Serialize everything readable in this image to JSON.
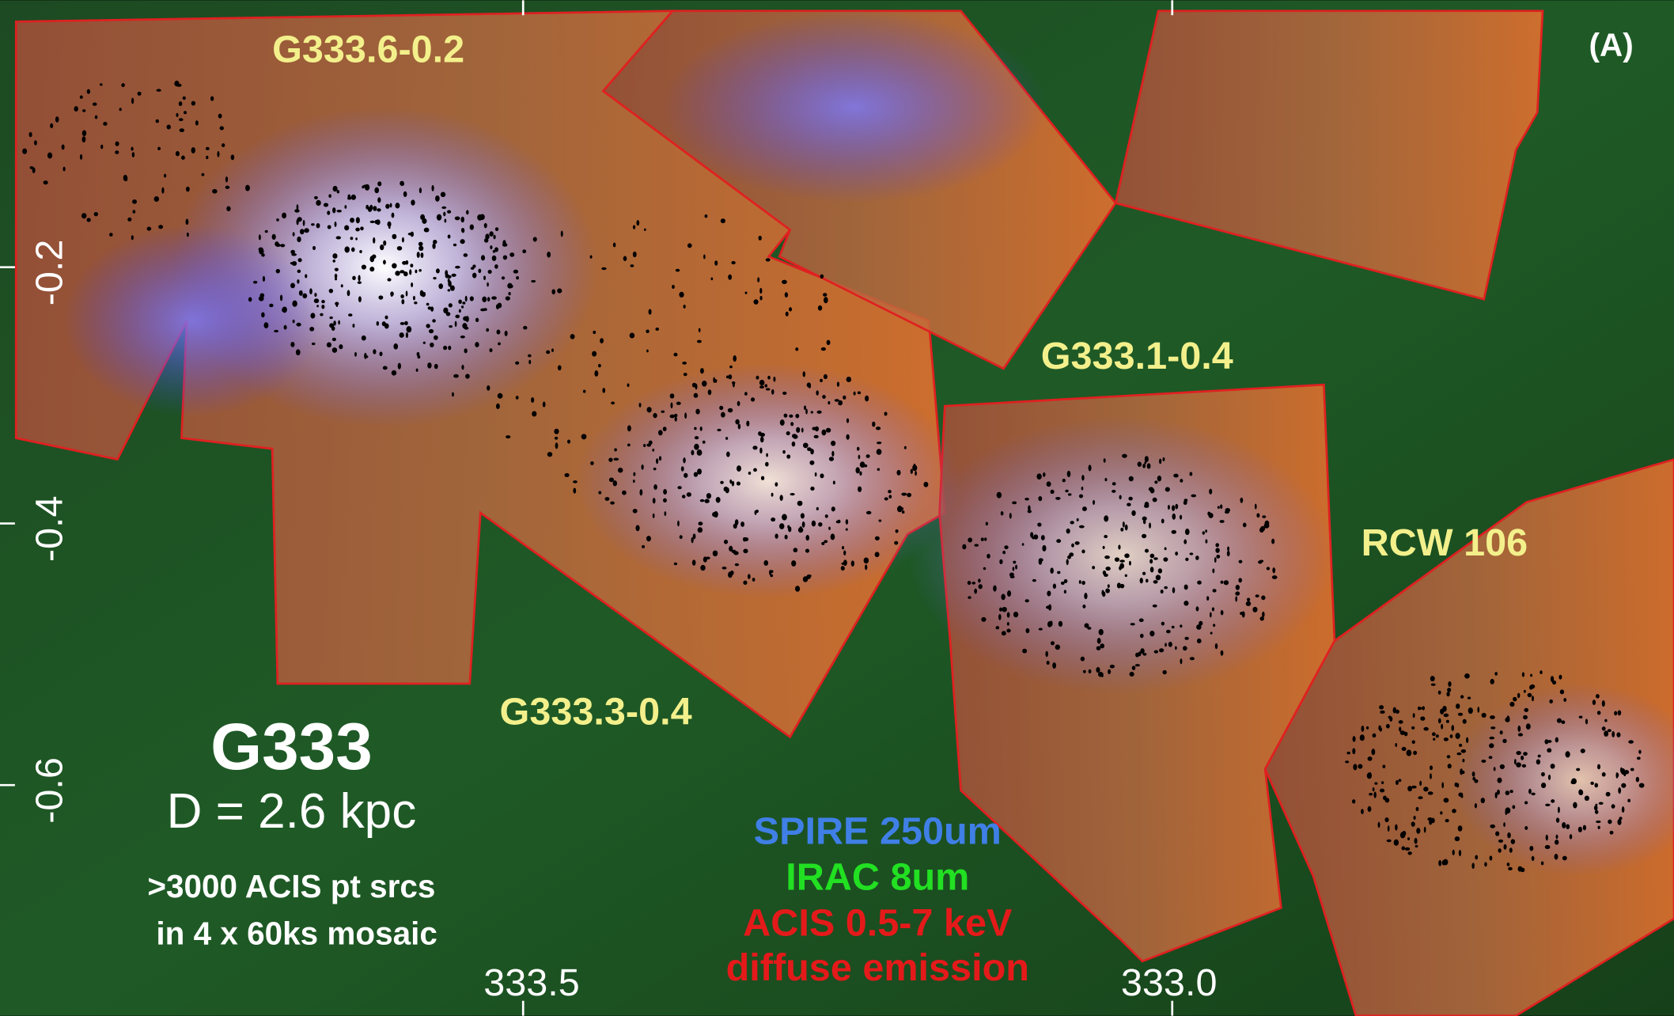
{
  "panel_label": "(A)",
  "regions": [
    "G333.6-0.2",
    "G333.1-0.4",
    "RCW 106",
    "G333.3-0.4"
  ],
  "info": {
    "name": "G333",
    "distance": "D = 2.6 kpc",
    "note_line1": ">3000 ACIS pt srcs",
    "note_line2": "in 4 x 60ks mosaic"
  },
  "legend": [
    "SPIRE 250um",
    "IRAC 8um",
    "ACIS 0.5-7 keV",
    "diffuse emission"
  ],
  "axes": {
    "y_ticks": [
      "-0.2",
      "-0.4",
      "-0.6"
    ],
    "x_ticks": [
      "333.5",
      "333.0"
    ]
  }
}
